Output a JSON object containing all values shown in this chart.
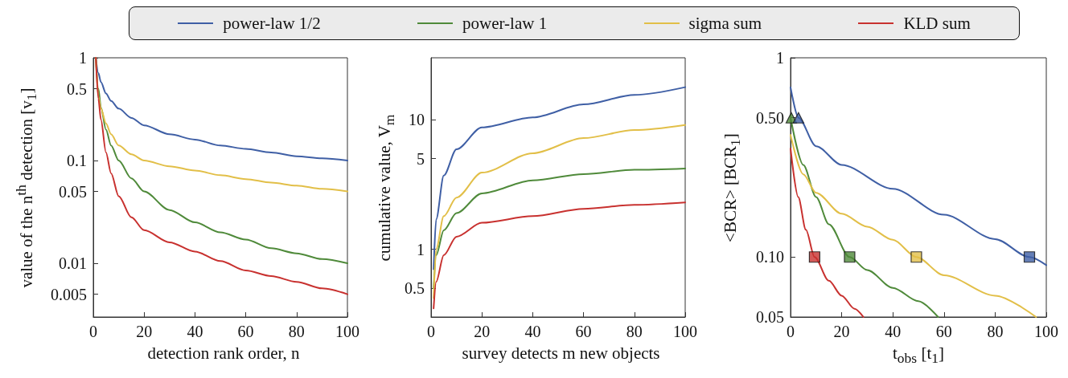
{
  "chart_data": [
    {
      "type": "line",
      "legend": "top",
      "xlabel": "detection rank order, n",
      "ylabel": "value of the n$^{th}$ detection [v$_{1}$]",
      "log": "y",
      "xlim": [
        0,
        100
      ],
      "xticks": [
        0,
        20,
        40,
        60,
        80,
        100
      ],
      "ylim": [
        0.003,
        1
      ],
      "yticks": [
        0.005,
        0.01,
        0.05,
        0.1,
        0.5,
        1
      ],
      "x": [
        1,
        2,
        3,
        5,
        7,
        10,
        15,
        20,
        30,
        40,
        50,
        60,
        70,
        80,
        90,
        100
      ],
      "series": [
        {
          "name": "power-law 1/2",
          "color": "#3f5fa5",
          "values": [
            1,
            0.71,
            0.58,
            0.45,
            0.38,
            0.32,
            0.26,
            0.22,
            0.18,
            0.16,
            0.14,
            0.13,
            0.12,
            0.11,
            0.105,
            0.1
          ]
        },
        {
          "name": "power-law 1",
          "color": "#4f8a3a",
          "values": [
            1,
            0.5,
            0.33,
            0.2,
            0.14,
            0.1,
            0.067,
            0.05,
            0.033,
            0.025,
            0.02,
            0.017,
            0.014,
            0.0125,
            0.011,
            0.01
          ]
        },
        {
          "name": "sigma sum",
          "color": "#e2bf48",
          "values": [
            1,
            0.42,
            0.32,
            0.23,
            0.18,
            0.14,
            0.115,
            0.1,
            0.088,
            0.08,
            0.072,
            0.066,
            0.061,
            0.057,
            0.053,
            0.05
          ]
        },
        {
          "name": "KLD sum",
          "color": "#c8312f",
          "values": [
            1,
            0.4,
            0.25,
            0.12,
            0.075,
            0.045,
            0.028,
            0.021,
            0.016,
            0.013,
            0.0105,
            0.0085,
            0.0075,
            0.0066,
            0.0057,
            0.005
          ]
        }
      ]
    },
    {
      "type": "line",
      "xlabel": "survey detects m new objects",
      "ylabel": "cumulative value, V$_{m}$",
      "log": "y",
      "xlim": [
        0,
        100
      ],
      "xticks": [
        0,
        20,
        40,
        60,
        80,
        100
      ],
      "ylim": [
        0.3,
        30
      ],
      "yticks": [
        0.5,
        1,
        5,
        10
      ],
      "x": [
        1,
        2,
        5,
        10,
        20,
        40,
        60,
        80,
        100
      ],
      "series": [
        {
          "color": "#3f5fa5",
          "values": [
            0.7,
            1.7,
            3.7,
            5.9,
            8.7,
            10.4,
            13.1,
            15.5,
            17.8
          ]
        },
        {
          "color": "#4f8a3a",
          "values": [
            0.5,
            0.9,
            1.4,
            1.9,
            2.7,
            3.4,
            3.8,
            4.1,
            4.2
          ]
        },
        {
          "color": "#e2bf48",
          "values": [
            0.42,
            1.0,
            1.8,
            2.5,
            3.9,
            5.5,
            7.2,
            8.3,
            9.1
          ]
        },
        {
          "color": "#c8312f",
          "values": [
            0.35,
            0.56,
            0.9,
            1.25,
            1.6,
            1.8,
            2.05,
            2.2,
            2.3
          ]
        }
      ]
    },
    {
      "type": "line",
      "xlabel": "t$_{obs}$ [t$_{1}$]",
      "ylabel": "<BCR> [BCR$_{1}$]",
      "log": "y",
      "xlim": [
        0,
        100
      ],
      "xticks": [
        0,
        20,
        40,
        60,
        80,
        100
      ],
      "ylim": [
        0.05,
        1
      ],
      "yticks": [
        {
          "value": 0.05,
          "label": "0.05"
        },
        {
          "value": 0.1,
          "label": "0.10"
        },
        {
          "value": 0.5,
          "label": "0.50"
        },
        1
      ],
      "series": [
        {
          "color": "#3f5fa5",
          "x": [
            0,
            3.1,
            10,
            20,
            40,
            60,
            80,
            93.4,
            100
          ],
          "values": [
            0.71,
            0.5,
            0.36,
            0.29,
            0.22,
            0.163,
            0.123,
            0.1,
            0.091
          ]
        },
        {
          "color": "#4f8a3a",
          "x": [
            0,
            5,
            10,
            15,
            23.1,
            30,
            40,
            50,
            57.7
          ],
          "values": [
            0.5,
            0.29,
            0.2,
            0.146,
            0.1,
            0.086,
            0.07,
            0.06,
            0.05
          ]
        },
        {
          "color": "#e2bf48",
          "x": [
            0,
            5,
            10,
            20,
            30,
            40,
            49.2,
            60,
            80,
            96
          ],
          "values": [
            0.41,
            0.26,
            0.21,
            0.165,
            0.142,
            0.122,
            0.1,
            0.081,
            0.064,
            0.05
          ]
        },
        {
          "color": "#c8312f",
          "x": [
            0,
            3,
            6,
            9.4,
            15,
            20,
            25,
            28.5
          ],
          "values": [
            0.35,
            0.2,
            0.137,
            0.1,
            0.076,
            0.064,
            0.055,
            0.05
          ]
        },
        {
          "type": "scatter",
          "marker": "triangle",
          "color": "#4f8a3a",
          "x": [
            0.3
          ],
          "values": [
            0.5
          ]
        },
        {
          "type": "scatter",
          "marker": "triangle",
          "color": "#3f5fa5",
          "x": [
            3.1
          ],
          "values": [
            0.5
          ]
        },
        {
          "type": "scatter",
          "marker": "square",
          "color": "#c8312f",
          "x": [
            9.4
          ],
          "values": [
            0.1
          ]
        },
        {
          "type": "scatter",
          "marker": "square",
          "color": "#4f8a3a",
          "x": [
            23.1
          ],
          "values": [
            0.1
          ]
        },
        {
          "type": "scatter",
          "marker": "square",
          "color": "#e2bf48",
          "x": [
            49.2
          ],
          "values": [
            0.1
          ]
        },
        {
          "type": "scatter",
          "marker": "square",
          "color": "#3f5fa5",
          "x": [
            93.4
          ],
          "values": [
            0.1
          ]
        }
      ]
    }
  ]
}
